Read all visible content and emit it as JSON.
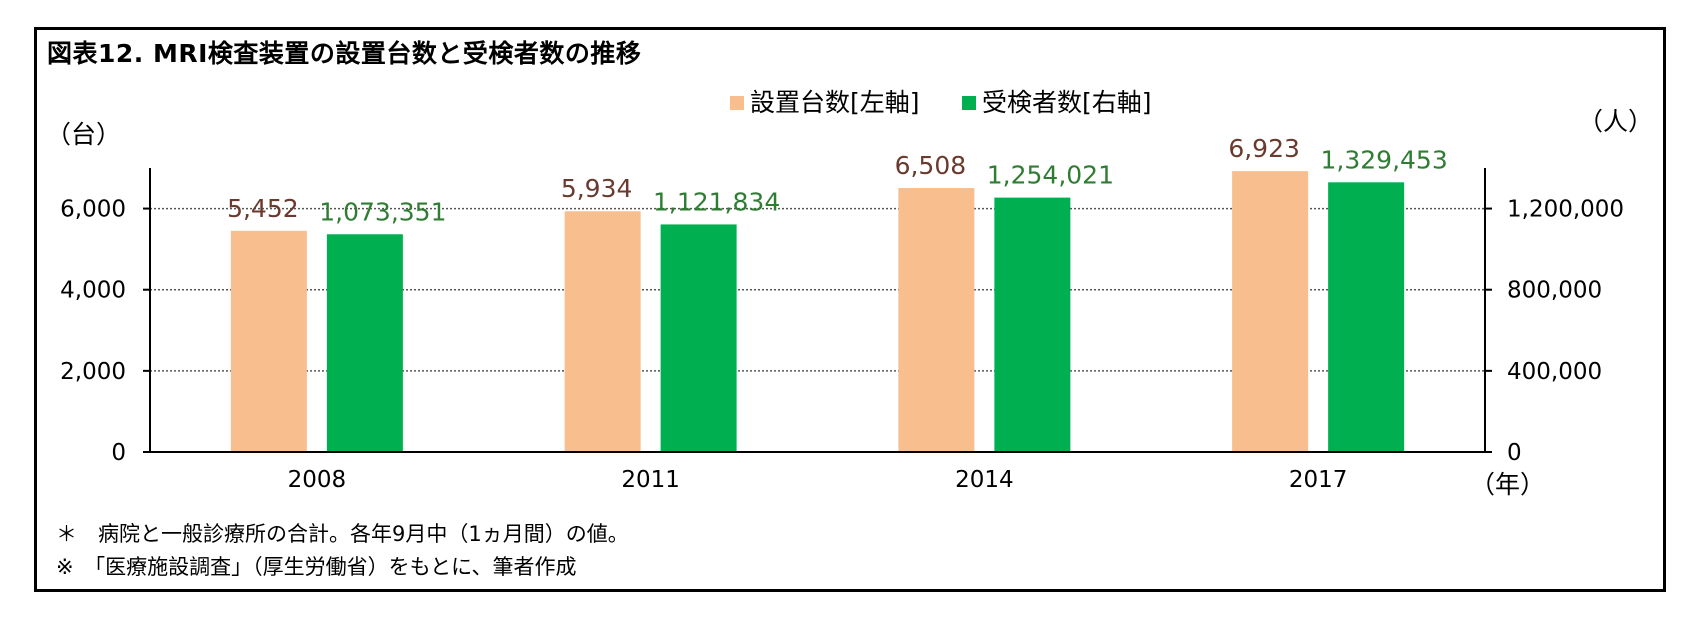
{
  "title": "図表12. MRI検査装置の設置台数と受検者数の推移",
  "notes": [
    "＊　病院と一般診療所の合計。各年9月中（1ヵ月間）の値。",
    "※　「医療施設調査」（厚生労働省）をもとに、筆者作成"
  ],
  "chart_data": {
    "type": "bar",
    "categories": [
      "2008",
      "2011",
      "2014",
      "2017"
    ],
    "series": [
      {
        "name": "設置台数[左軸]",
        "axis": "left",
        "color": "#F8BE8E",
        "label_color": "#6B3A2E",
        "values": [
          5452,
          5934,
          6508,
          6923
        ],
        "labels": [
          "5,452",
          "5,934",
          "6,508",
          "6,923"
        ]
      },
      {
        "name": "受検者数[右軸]",
        "axis": "right",
        "color": "#00B050",
        "label_color": "#2E7D32",
        "values": [
          1073351,
          1121834,
          1254021,
          1329453
        ],
        "labels": [
          "1,073,351",
          "1,121,834",
          "1,254,021",
          "1,329,453"
        ]
      }
    ],
    "left_axis": {
      "unit_label": "（台）",
      "ylim": [
        0,
        7000
      ],
      "ticks": [
        0,
        2000,
        4000,
        6000
      ],
      "tick_labels": [
        "0",
        "2,000",
        "4,000",
        "6,000"
      ]
    },
    "right_axis": {
      "unit_label": "（人）",
      "ylim": [
        0,
        1400000
      ],
      "ticks": [
        0,
        400000,
        800000,
        1200000
      ],
      "tick_labels": [
        "0",
        "400,000",
        "800,000",
        "1,200,000"
      ]
    },
    "x_unit_label": "（年）",
    "grid": true,
    "legend": "top-center"
  }
}
